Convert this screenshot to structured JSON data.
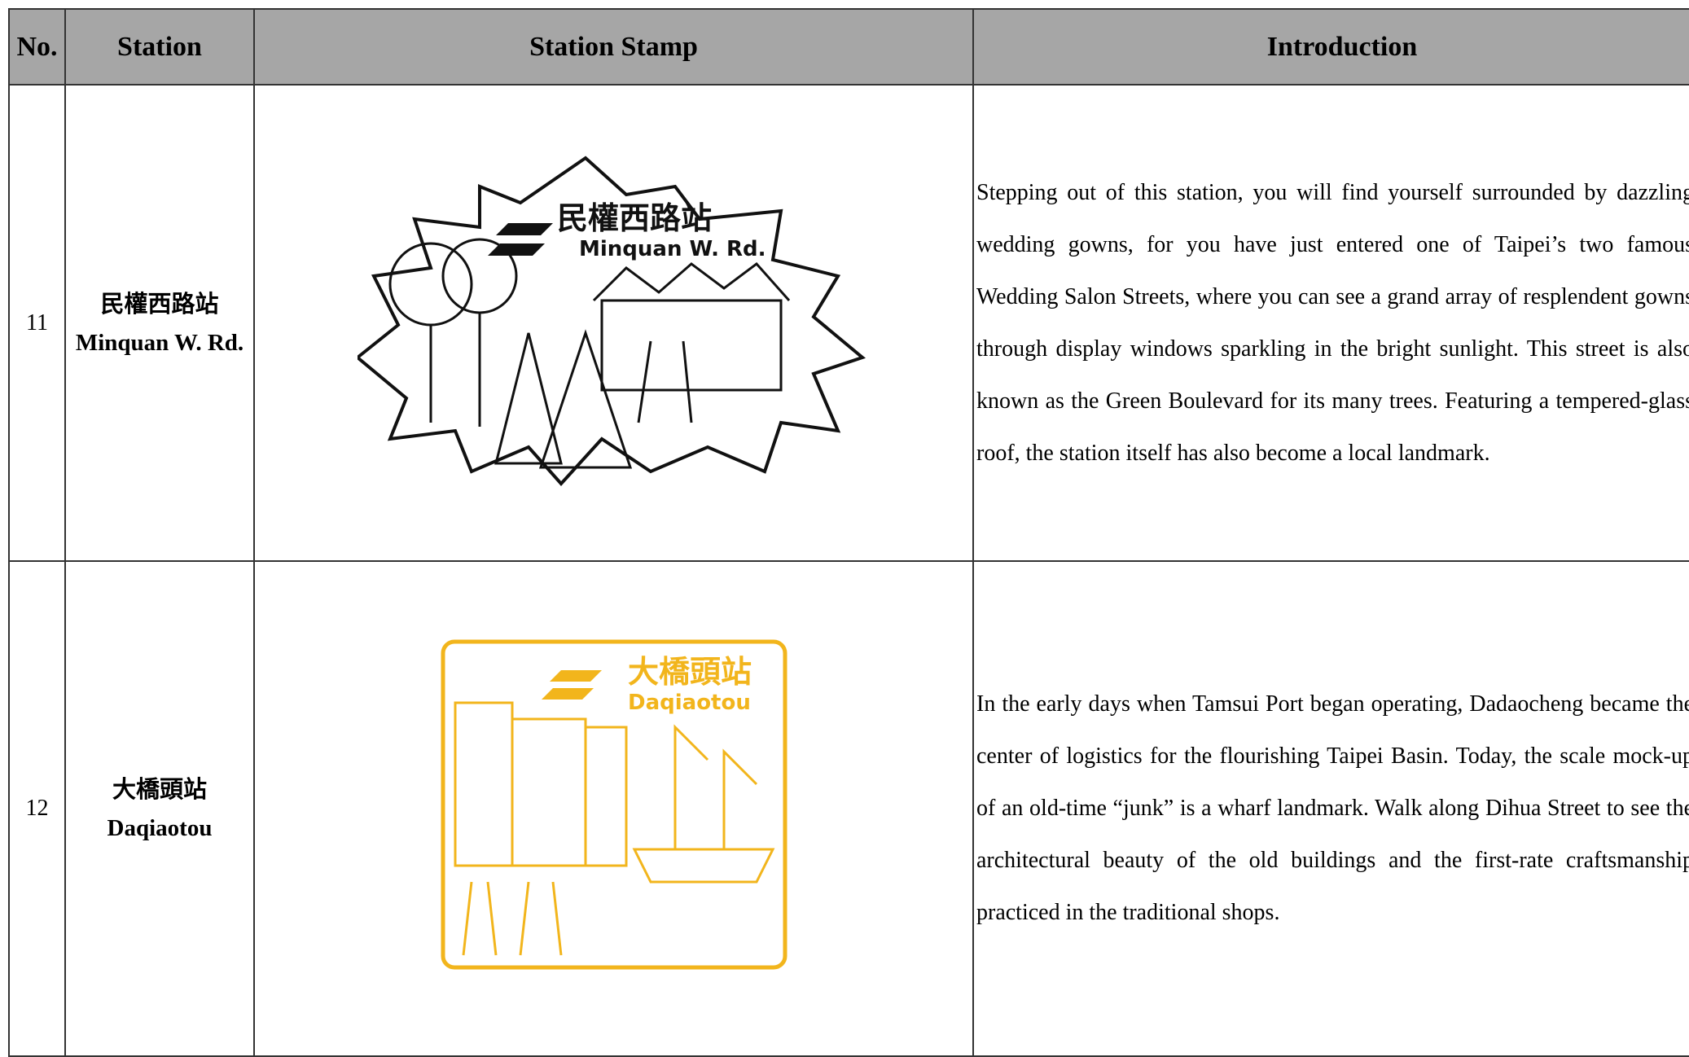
{
  "table": {
    "headers": [
      "No.",
      "Station",
      "Station Stamp",
      "Introduction"
    ],
    "rows": [
      {
        "no": "11",
        "station_zh": "民權西路站",
        "station_en": "Minquan W. Rd.",
        "stamp": {
          "zh": "民權西路站",
          "en": "Minquan W. Rd."
        },
        "introduction": "Stepping out of this station, you will find yourself surrounded by dazzling wedding gowns, for you have just entered one of Taipei’s two famous Wedding Salon Streets, where you can see a grand array of resplendent gowns through display windows sparkling in the bright sunlight. This street is also known as the Green Boulevard for its many trees. Featuring a tempered-glass roof, the station itself has also become a local landmark."
      },
      {
        "no": "12",
        "station_zh": "大橋頭站",
        "station_en": "Daqiaotou",
        "stamp": {
          "zh": "大橋頭站",
          "en": "Daqiaotou"
        },
        "introduction": "In the early days when Tamsui Port began operating, Dadaocheng became the center of logistics for the flourishing Taipei Basin. Today, the scale mock-up of an old-time “junk” is a wharf landmark. Walk along Dihua Street to see the architectural beauty of the old buildings and the first-rate craftsmanship practiced in the traditional shops."
      }
    ]
  }
}
